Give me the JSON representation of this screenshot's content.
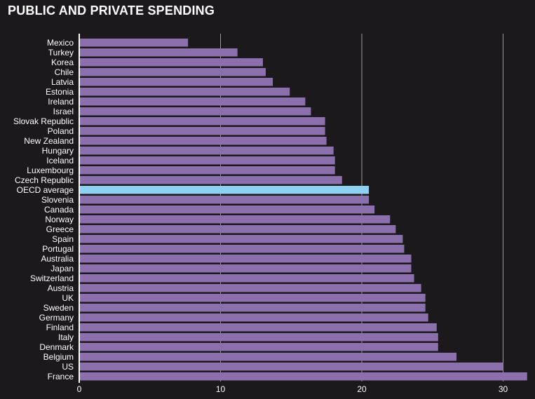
{
  "chart_data": {
    "type": "bar",
    "orientation": "horizontal",
    "title": "PUBLIC AND PRIVATE SPENDING",
    "xlabel": "",
    "ylabel": "",
    "xlim": [
      0,
      32
    ],
    "x_ticks": [
      0,
      10,
      20,
      30
    ],
    "grid": true,
    "categories": [
      "Mexico",
      "Turkey",
      "Korea",
      "Chile",
      "Latvia",
      "Estonia",
      "Ireland",
      "Israel",
      "Slovak Republic",
      "Poland",
      "New Zealand",
      "Hungary",
      "Iceland",
      "Luxembourg",
      "Czech Republic",
      "OECD average",
      "Slovenia",
      "Canada",
      "Norway",
      "Greece",
      "Spain",
      "Portugal",
      "Australia",
      "Japan",
      "Switzerland",
      "Austria",
      "UK",
      "Sweden",
      "Germany",
      "Finland",
      "Italy",
      "Denmark",
      "Belgium",
      "US",
      "France"
    ],
    "values": [
      7.7,
      11.2,
      13.0,
      13.2,
      13.7,
      14.9,
      16.0,
      16.4,
      17.4,
      17.4,
      17.5,
      18.0,
      18.1,
      18.1,
      18.6,
      20.5,
      20.5,
      20.9,
      22.0,
      22.4,
      22.9,
      23.0,
      23.5,
      23.5,
      23.7,
      24.2,
      24.5,
      24.5,
      24.7,
      25.3,
      25.4,
      25.4,
      26.7,
      30.0,
      31.7
    ],
    "highlight": "OECD average",
    "colors": {
      "bar": "#8b70ad",
      "highlight": "#8dd0f0",
      "grid": "#9a9a9a",
      "background": "#1b191c",
      "text": "#ffffff"
    }
  }
}
